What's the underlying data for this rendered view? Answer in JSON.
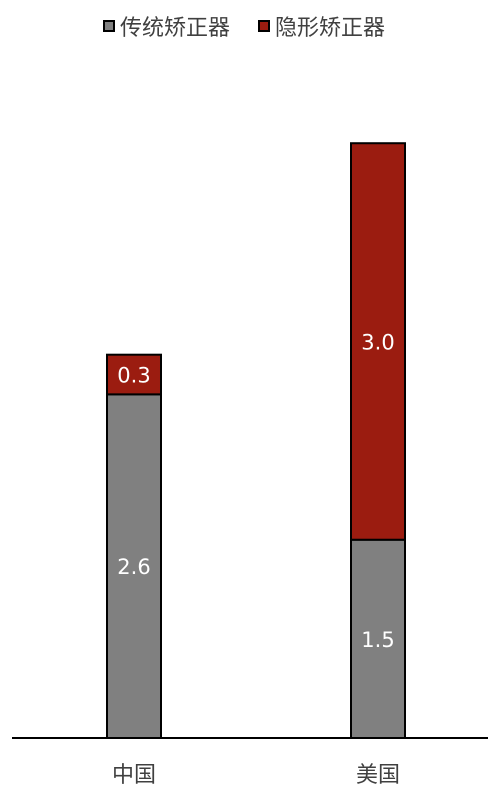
{
  "chart_data": {
    "type": "bar",
    "stacked": true,
    "categories": [
      "中国",
      "美国"
    ],
    "series": [
      {
        "name": "传统矫正器",
        "values": [
          2.6,
          1.5
        ],
        "color": "#808080"
      },
      {
        "name": "隐形矫正器",
        "values": [
          0.3,
          3.0
        ],
        "color": "#9b1c10"
      }
    ],
    "ylim": [
      0,
      4.6
    ],
    "legend": "top-center",
    "grid": false,
    "label_color": "#ffffff"
  }
}
